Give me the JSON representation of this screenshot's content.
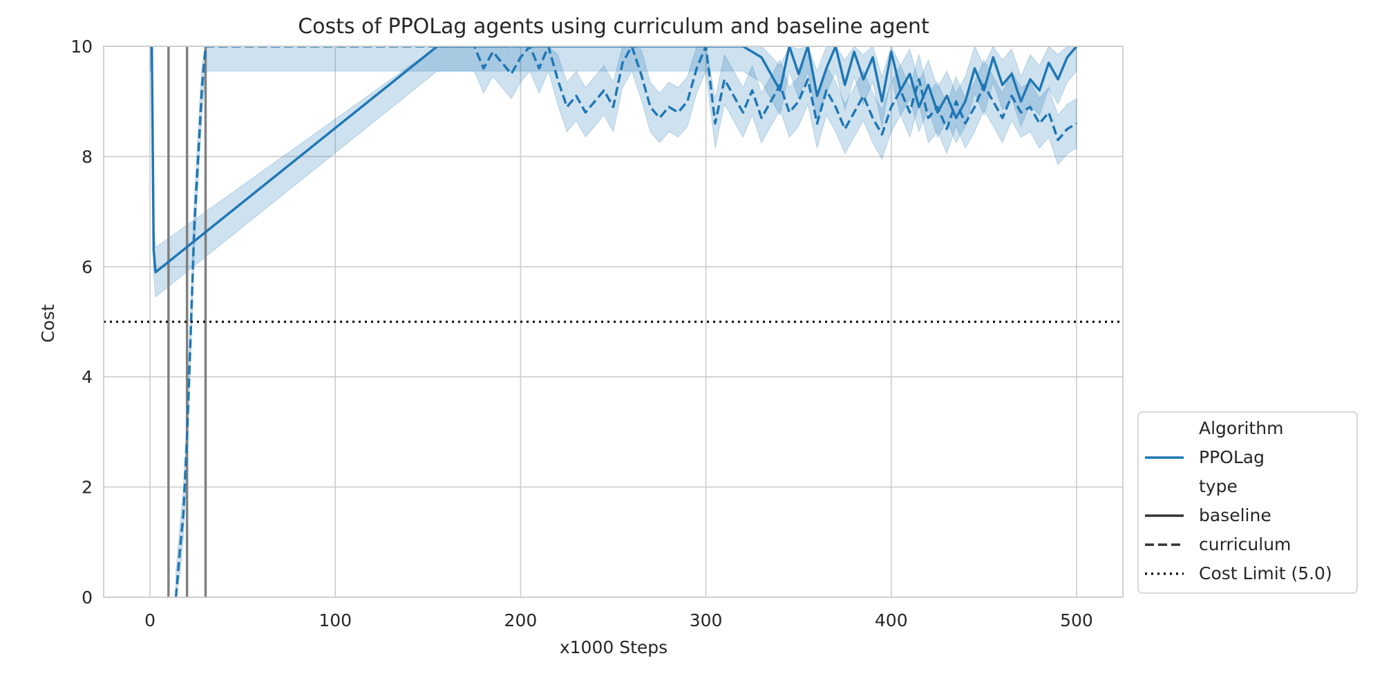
{
  "chart_data": {
    "type": "line",
    "title": "Costs of PPOLag agents using curriculum and baseline agent",
    "xlabel": "x1000 Steps",
    "ylabel": "Cost",
    "xlim": [
      -25,
      525
    ],
    "ylim": [
      0,
      10
    ],
    "xticks": [
      0,
      100,
      200,
      300,
      400,
      500
    ],
    "yticks": [
      0,
      2,
      4,
      6,
      8,
      10
    ],
    "grid": true,
    "legend_position": "outside-right-bottom",
    "color": "#1f77b4",
    "cost_limit": 5.0,
    "vertical_lines_x": [
      10,
      20,
      30
    ],
    "legend": {
      "algorithm_header": "Algorithm",
      "algorithm_entry": "PPOLag",
      "type_header": "type",
      "baseline": "baseline",
      "curriculum": "curriculum",
      "cost_limit_label": "Cost Limit (5.0)"
    },
    "series": [
      {
        "name": "baseline",
        "line_style": "solid",
        "x": [
          0,
          1,
          2,
          3,
          155,
          170,
          180,
          200,
          220,
          240,
          260,
          280,
          300,
          310,
          320,
          330,
          340,
          345,
          350,
          355,
          360,
          365,
          370,
          375,
          380,
          385,
          390,
          395,
          400,
          405,
          410,
          415,
          420,
          425,
          430,
          435,
          440,
          445,
          450,
          455,
          460,
          465,
          470,
          475,
          480,
          485,
          490,
          495,
          500
        ],
        "y": [
          10,
          10,
          6.3,
          5.9,
          10,
          10,
          10,
          10,
          10,
          10,
          10,
          10,
          10,
          10,
          10,
          9.8,
          9.2,
          10,
          9.5,
          10,
          9.1,
          9.6,
          10,
          9.3,
          9.9,
          9.4,
          9.8,
          9.0,
          9.9,
          9.2,
          9.5,
          8.9,
          9.3,
          8.8,
          9.1,
          8.7,
          9.0,
          9.6,
          9.2,
          9.8,
          9.3,
          9.5,
          9.0,
          9.4,
          9.2,
          9.7,
          9.4,
          9.8,
          10
        ]
      },
      {
        "name": "curriculum",
        "line_style": "dashed",
        "x": [
          14,
          16,
          18,
          20,
          22,
          24,
          26,
          28,
          30,
          175,
          180,
          185,
          190,
          195,
          200,
          205,
          210,
          215,
          220,
          225,
          230,
          235,
          240,
          245,
          250,
          255,
          260,
          265,
          270,
          275,
          280,
          285,
          290,
          295,
          300,
          305,
          310,
          315,
          320,
          325,
          330,
          335,
          340,
          345,
          350,
          355,
          360,
          365,
          370,
          375,
          380,
          385,
          390,
          395,
          400,
          405,
          410,
          415,
          420,
          425,
          430,
          435,
          440,
          445,
          450,
          455,
          460,
          465,
          470,
          475,
          480,
          485,
          490,
          495,
          500
        ],
        "y": [
          0.0,
          0.8,
          1.5,
          2.9,
          4.8,
          6.8,
          8.0,
          9.2,
          10,
          10,
          9.6,
          9.9,
          9.7,
          9.5,
          9.8,
          10,
          9.6,
          10,
          9.4,
          8.9,
          9.1,
          8.8,
          9.0,
          9.2,
          8.9,
          9.7,
          10,
          9.5,
          8.9,
          8.7,
          8.9,
          8.8,
          9.0,
          9.6,
          10,
          8.6,
          9.4,
          9.1,
          8.8,
          9.2,
          8.7,
          9.0,
          9.3,
          8.8,
          9.0,
          9.4,
          8.6,
          9.2,
          8.9,
          8.5,
          8.8,
          9.1,
          8.7,
          8.4,
          8.9,
          9.2,
          8.8,
          9.4,
          8.7,
          8.9,
          8.5,
          9.0,
          8.6,
          8.9,
          9.3,
          9.0,
          8.7,
          9.1,
          8.8,
          8.9,
          8.6,
          8.8,
          8.3,
          8.5,
          8.6
        ]
      }
    ]
  }
}
